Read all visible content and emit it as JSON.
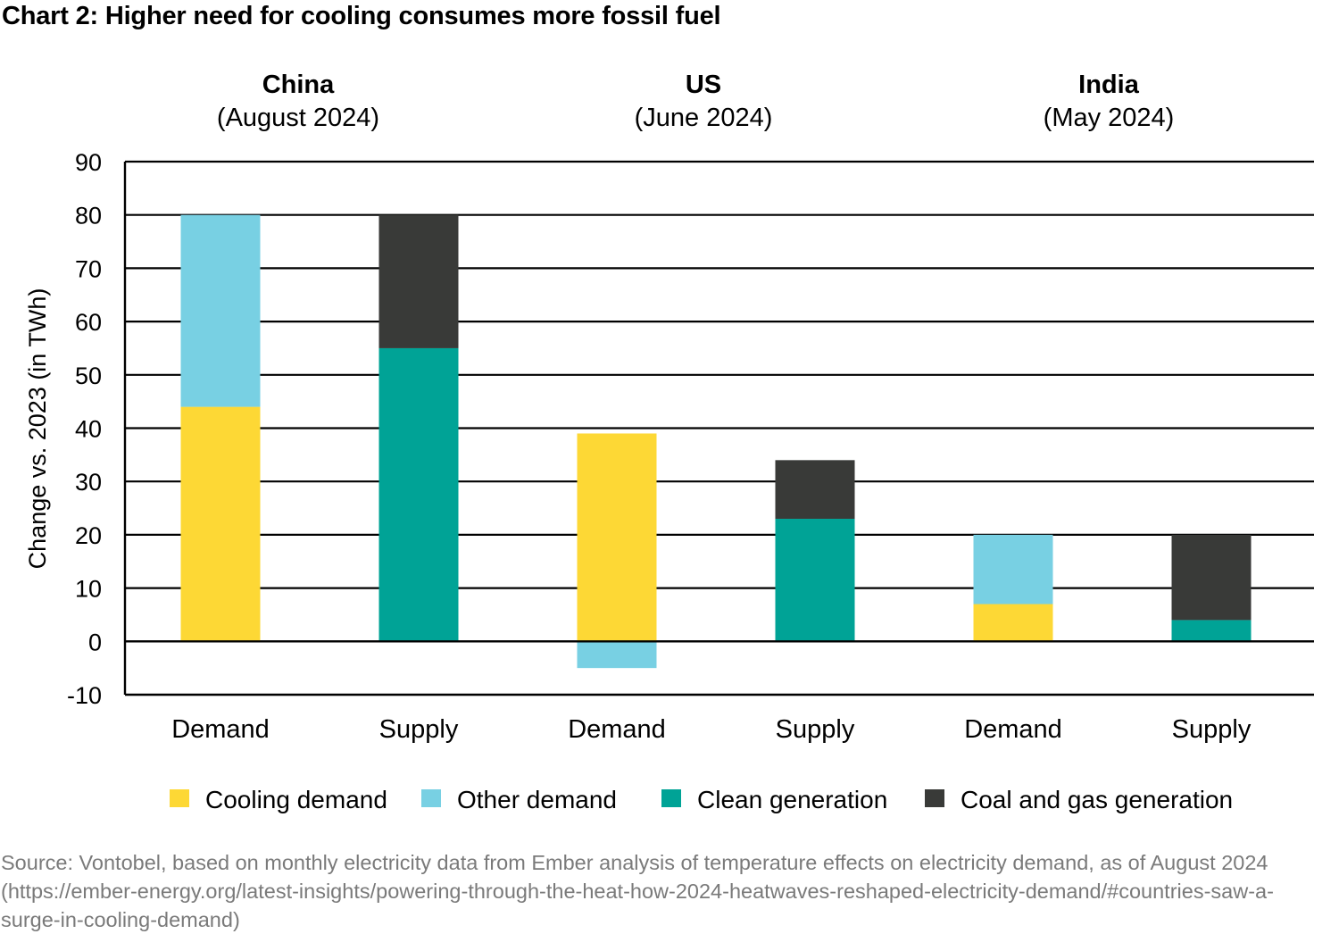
{
  "chart_data": {
    "type": "bar",
    "stacked": true,
    "title": "Chart 2: Higher need for cooling consumes more fossil fuel",
    "ylabel": "Change vs. 2023 (in TWh)",
    "xlabel": "",
    "ylim": [
      -10,
      90
    ],
    "yticks": [
      90,
      80,
      70,
      60,
      50,
      40,
      30,
      20,
      10,
      0,
      -10
    ],
    "grid": true,
    "legend_position": "bottom",
    "groups": [
      {
        "country": "China",
        "period": "(August 2024)"
      },
      {
        "country": "US",
        "period": "(June 2024)"
      },
      {
        "country": "India",
        "period": "(May 2024)"
      }
    ],
    "categories": [
      "Demand",
      "Supply",
      "Demand",
      "Supply",
      "Demand",
      "Supply"
    ],
    "series": [
      {
        "name": "Cooling demand",
        "color": "#FDD835",
        "values": [
          44,
          0,
          39,
          0,
          7,
          0
        ]
      },
      {
        "name": "Other demand",
        "color": "#78D0E3",
        "values": [
          36,
          0,
          -5,
          0,
          13,
          0
        ]
      },
      {
        "name": "Clean generation",
        "color": "#00A396",
        "values": [
          0,
          55,
          0,
          23,
          0,
          4
        ]
      },
      {
        "name": "Coal and gas generation",
        "color": "#393A38",
        "values": [
          0,
          25,
          0,
          11,
          0,
          16
        ]
      }
    ]
  },
  "source": "Source: Vontobel, based on monthly electricity data from Ember analysis of temperature effects on electricity demand, as of August 2024 (https://ember-energy.org/latest-insights/powering-through-the-heat-how-2024-heatwaves-reshaped-electricity-demand/#countries-saw-a-surge-in-cooling-demand)"
}
